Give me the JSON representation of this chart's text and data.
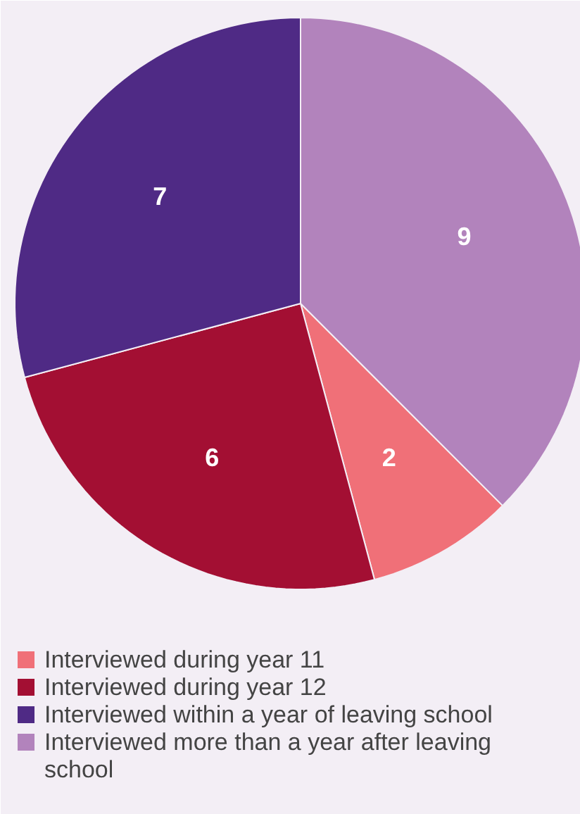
{
  "chart_data": {
    "type": "pie",
    "categories": [
      "Interviewed during year 11",
      "Interviewed during year 12",
      "Interviewed within a year of leaving school",
      "Interviewed more than a year after leaving school"
    ],
    "values": [
      2,
      6,
      7,
      9
    ],
    "colors": [
      "#f07078",
      "#a30f33",
      "#4f2a85",
      "#b283bc"
    ],
    "data_labels": true,
    "legend": "bottom"
  }
}
